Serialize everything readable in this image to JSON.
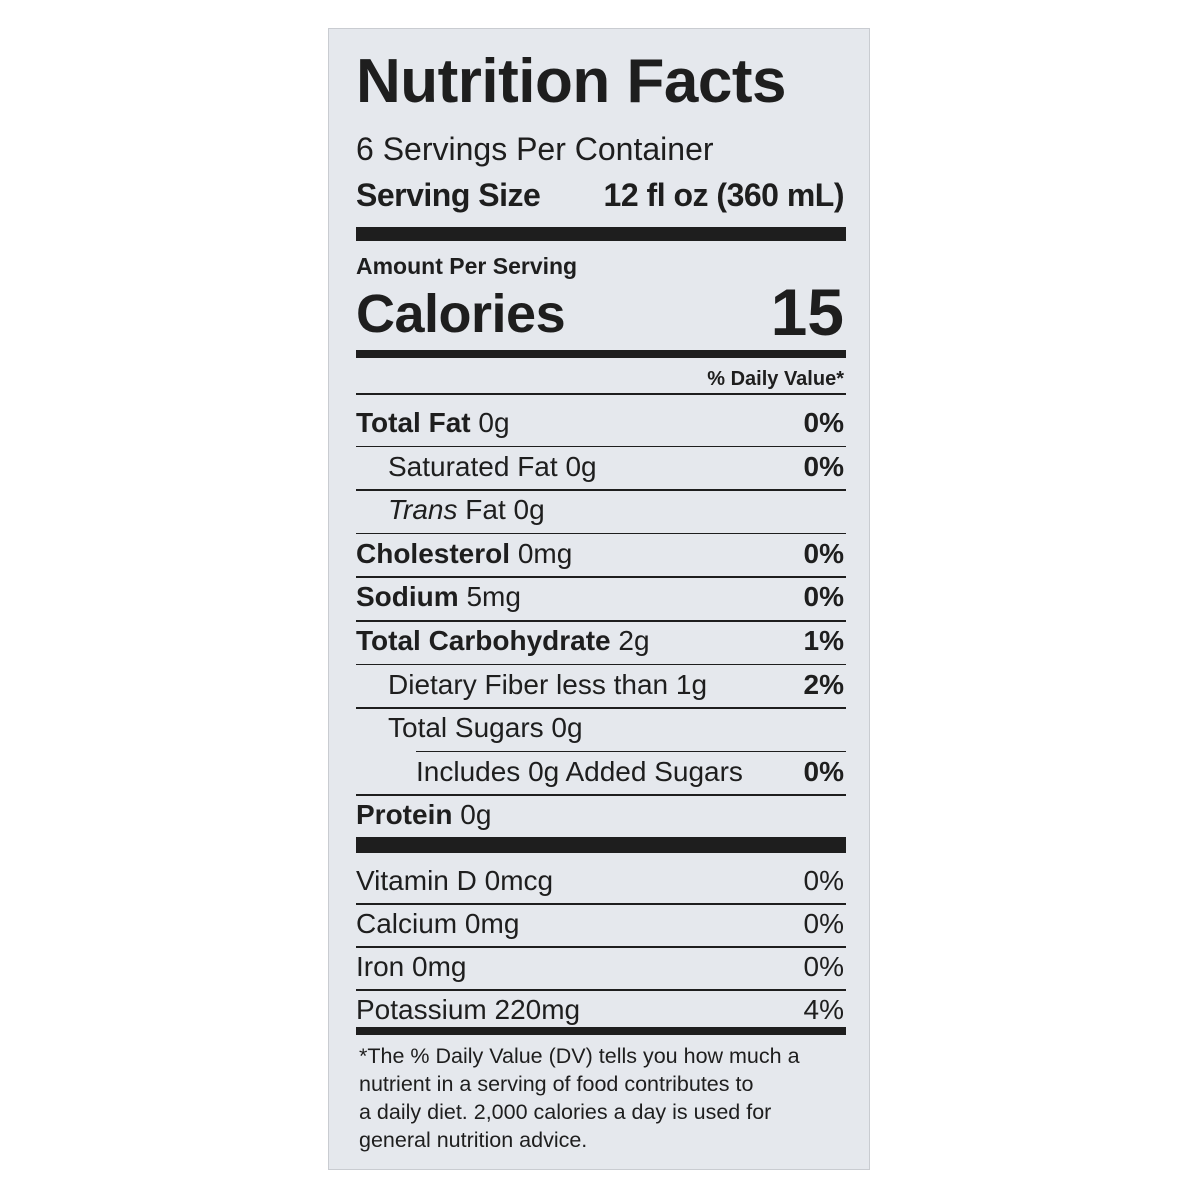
{
  "header": {
    "title": "Nutrition Facts",
    "servings": "6 Servings Per Container",
    "serving_size_label": "Serving Size",
    "serving_size": "12 fl oz (360 mL)"
  },
  "calories": {
    "amount_per_serving": "Amount Per Serving",
    "label": "Calories",
    "value": 15
  },
  "dv_header": "% Daily Value*",
  "nutrients": [
    {
      "name": "Total Fat",
      "amount": "0g",
      "dv": "0%",
      "indent": 0
    },
    {
      "name": "Saturated Fat",
      "amount": "0g",
      "dv": "0%",
      "indent": 1
    },
    {
      "name_italic": "Trans",
      "name": "Fat",
      "amount": "0g",
      "indent": 1
    },
    {
      "name": "Cholesterol",
      "amount": "0mg",
      "dv": "0%",
      "indent": 0
    },
    {
      "name": "Sodium",
      "amount": "5mg",
      "dv": "0%",
      "indent": 0
    },
    {
      "name": "Total Carbohydrate",
      "amount": "2g",
      "dv": "1%",
      "indent": 0
    },
    {
      "name": "Dietary Fiber",
      "amount": "less than 1g",
      "dv": "2%",
      "indent": 1
    },
    {
      "name": "Total Sugars",
      "amount": "0g",
      "indent": 1
    },
    {
      "name": "Includes 0g Added Sugars",
      "dv": "0%",
      "indent": 2
    },
    {
      "name": "Protein",
      "amount": "0g",
      "indent": 0
    }
  ],
  "vitamins": [
    {
      "name": "Vitamin D",
      "amount": "0mcg",
      "dv": "0%"
    },
    {
      "name": "Calcium",
      "amount": "0mg",
      "dv": "0%"
    },
    {
      "name": "Iron",
      "amount": "0mg",
      "dv": "0%"
    },
    {
      "name": "Potassium",
      "amount": "220mg",
      "dv": "4%"
    }
  ],
  "footnote": [
    "*The % Daily Value (DV) tells you how much a",
    "nutrient in a serving of food contributes to",
    "a daily diet. 2,000 calories a day is used for",
    "general nutrition advice."
  ]
}
